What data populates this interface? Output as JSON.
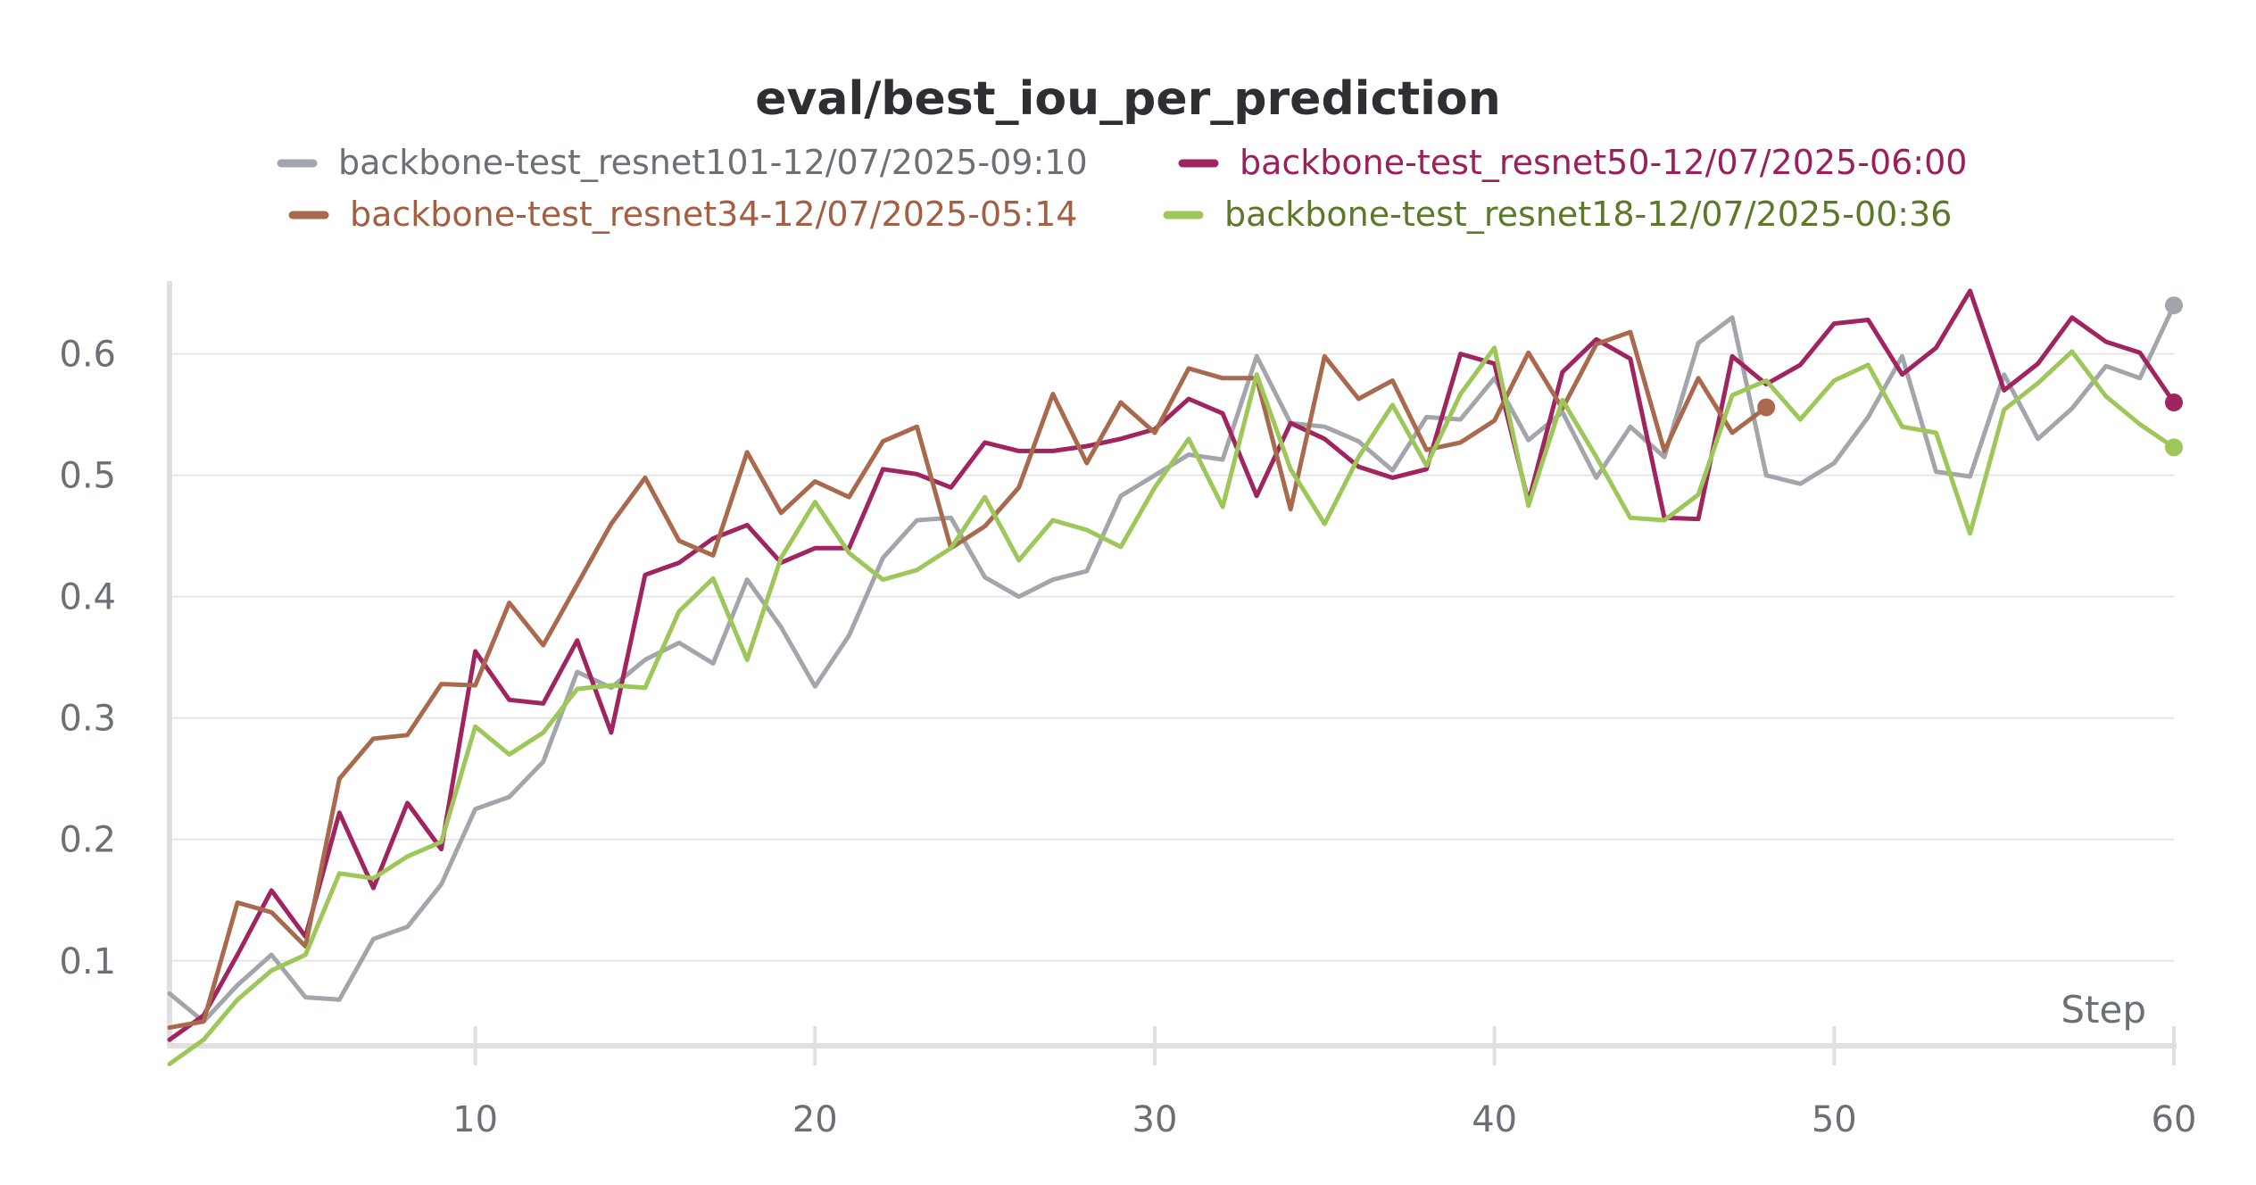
{
  "chart_data": {
    "type": "line",
    "title": "eval/best_iou_per_prediction",
    "xlabel": "Step",
    "ylabel": "",
    "xlim": [
      1,
      60
    ],
    "ylim": [
      0.03,
      0.66
    ],
    "xticks": [
      10,
      20,
      30,
      40,
      50,
      60
    ],
    "yticks": [
      0.1,
      0.2,
      0.3,
      0.4,
      0.5,
      0.6
    ],
    "xtick_labels": [
      "10",
      "20",
      "30",
      "40",
      "50",
      "60"
    ],
    "ytick_labels": [
      "0.1",
      "0.2",
      "0.3",
      "0.4",
      "0.5",
      "0.6"
    ],
    "grid": "horizontal",
    "legend_position": "top",
    "series": [
      {
        "name": "backbone-test_resnet101-12/07/2025-09:10",
        "color": "#a2a6ac",
        "text_color": "#6b6f76",
        "end_marker": true,
        "x": [
          1,
          2,
          3,
          4,
          5,
          6,
          7,
          8,
          9,
          10,
          11,
          12,
          13,
          14,
          15,
          16,
          17,
          18,
          19,
          20,
          21,
          22,
          23,
          24,
          25,
          26,
          27,
          28,
          29,
          30,
          31,
          32,
          33,
          34,
          35,
          36,
          37,
          38,
          39,
          40,
          41,
          42,
          43,
          44,
          45,
          46,
          47,
          48,
          49,
          50,
          51,
          52,
          53,
          54,
          55,
          56,
          57,
          58,
          59,
          60
        ],
        "values": [
          0.073,
          0.05,
          0.08,
          0.105,
          0.07,
          0.068,
          0.118,
          0.128,
          0.163,
          0.225,
          0.235,
          0.264,
          0.338,
          0.325,
          0.348,
          0.362,
          0.345,
          0.414,
          0.375,
          0.326,
          0.368,
          0.432,
          0.463,
          0.465,
          0.416,
          0.4,
          0.414,
          0.421,
          0.483,
          0.5,
          0.517,
          0.513,
          0.598,
          0.543,
          0.54,
          0.528,
          0.504,
          0.548,
          0.546,
          0.58,
          0.529,
          0.552,
          0.498,
          0.54,
          0.515,
          0.609,
          0.63,
          0.5,
          0.493,
          0.51,
          0.548,
          0.598,
          0.503,
          0.499,
          0.583,
          0.53,
          0.555,
          0.59,
          0.58,
          0.64
        ]
      },
      {
        "name": "backbone-test_resnet50-12/07/2025-06:00",
        "color": "#a0245f",
        "text_color": "#9c1f5b",
        "end_marker": true,
        "x": [
          1,
          2,
          3,
          4,
          5,
          6,
          7,
          8,
          9,
          10,
          11,
          12,
          13,
          14,
          15,
          16,
          17,
          18,
          19,
          20,
          21,
          22,
          23,
          24,
          25,
          26,
          27,
          28,
          29,
          30,
          31,
          32,
          33,
          34,
          35,
          36,
          37,
          38,
          39,
          40,
          41,
          42,
          43,
          44,
          45,
          46,
          47,
          48,
          49,
          50,
          51,
          52,
          53,
          54,
          55,
          56,
          57,
          58,
          59,
          60
        ],
        "values": [
          0.035,
          0.055,
          0.105,
          0.158,
          0.12,
          0.222,
          0.16,
          0.23,
          0.192,
          0.355,
          0.315,
          0.312,
          0.364,
          0.288,
          0.418,
          0.428,
          0.448,
          0.459,
          0.428,
          0.44,
          0.44,
          0.505,
          0.501,
          0.49,
          0.527,
          0.52,
          0.52,
          0.524,
          0.53,
          0.538,
          0.563,
          0.551,
          0.483,
          0.543,
          0.53,
          0.507,
          0.498,
          0.505,
          0.6,
          0.592,
          0.478,
          0.585,
          0.612,
          0.596,
          0.465,
          0.464,
          0.598,
          0.575,
          0.591,
          0.625,
          0.628,
          0.583,
          0.605,
          0.652,
          0.57,
          0.592,
          0.63,
          0.61,
          0.601,
          0.56
        ]
      },
      {
        "name": "backbone-test_resnet34-12/07/2025-05:14",
        "color": "#a9694d",
        "text_color": "#a45f43",
        "end_marker": true,
        "x": [
          1,
          2,
          3,
          4,
          5,
          6,
          7,
          8,
          9,
          10,
          11,
          12,
          13,
          14,
          15,
          16,
          17,
          18,
          19,
          20,
          21,
          22,
          23,
          24,
          25,
          26,
          27,
          28,
          29,
          30,
          31,
          32,
          33,
          34,
          35,
          36,
          37,
          38,
          39,
          40,
          41,
          42,
          43,
          44,
          45,
          46,
          47,
          48
        ],
        "values": [
          0.045,
          0.05,
          0.148,
          0.14,
          0.112,
          0.25,
          0.283,
          0.286,
          0.328,
          0.327,
          0.395,
          0.36,
          0.41,
          0.46,
          0.498,
          0.446,
          0.434,
          0.519,
          0.469,
          0.495,
          0.482,
          0.528,
          0.54,
          0.44,
          0.458,
          0.49,
          0.567,
          0.51,
          0.56,
          0.535,
          0.588,
          0.58,
          0.58,
          0.472,
          0.598,
          0.563,
          0.578,
          0.521,
          0.527,
          0.545,
          0.601,
          0.555,
          0.608,
          0.618,
          0.52,
          0.58,
          0.535,
          0.556
        ]
      },
      {
        "name": "backbone-test_resnet18-12/07/2025-00:36",
        "color": "#9dc759",
        "text_color": "#5a7a2a",
        "end_marker": true,
        "x": [
          1,
          2,
          3,
          4,
          5,
          6,
          7,
          8,
          9,
          10,
          11,
          12,
          13,
          14,
          15,
          16,
          17,
          18,
          19,
          20,
          21,
          22,
          23,
          24,
          25,
          26,
          27,
          28,
          29,
          30,
          31,
          32,
          33,
          34,
          35,
          36,
          37,
          38,
          39,
          40,
          41,
          42,
          43,
          44,
          45,
          46,
          47,
          48,
          49,
          50,
          51,
          52,
          53,
          54,
          55,
          56,
          57,
          58,
          59,
          60
        ],
        "values": [
          0.015,
          0.035,
          0.068,
          0.092,
          0.105,
          0.172,
          0.168,
          0.186,
          0.198,
          0.293,
          0.27,
          0.288,
          0.324,
          0.327,
          0.325,
          0.388,
          0.415,
          0.348,
          0.432,
          0.478,
          0.436,
          0.414,
          0.422,
          0.44,
          0.482,
          0.43,
          0.463,
          0.455,
          0.441,
          0.49,
          0.53,
          0.474,
          0.583,
          0.505,
          0.46,
          0.515,
          0.558,
          0.508,
          0.567,
          0.605,
          0.475,
          0.562,
          0.515,
          0.465,
          0.463,
          0.484,
          0.566,
          0.578,
          0.546,
          0.578,
          0.591,
          0.54,
          0.535,
          0.452,
          0.554,
          0.576,
          0.602,
          0.565,
          0.542,
          0.523
        ]
      }
    ]
  }
}
